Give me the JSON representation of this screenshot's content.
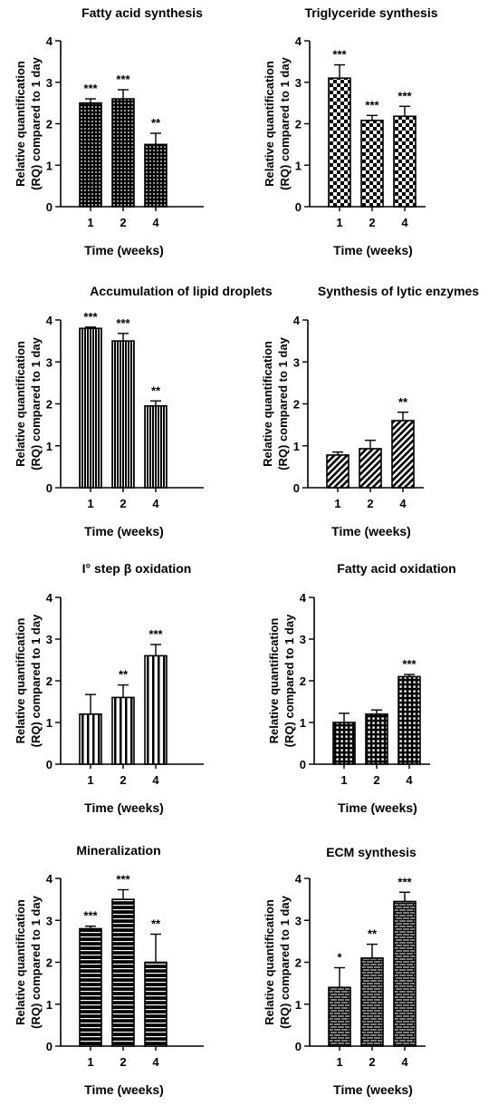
{
  "figure": {
    "panels": [
      {
        "title": "Fatty acid synthesis"
      },
      {
        "title": "Triglyceride synthesis"
      },
      {
        "title": "Accumulation of lipid droplets"
      },
      {
        "title": "Synthesis of lytic enzymes"
      },
      {
        "title": "I° step β oxidation"
      },
      {
        "title": "Fatty acid oxidation"
      },
      {
        "title": "Mineralization"
      },
      {
        "title": "ECM synthesis"
      }
    ]
  },
  "chart_data": [
    {
      "type": "bar",
      "title": "Fatty acid synthesis",
      "categories": [
        "1",
        "2",
        "4"
      ],
      "values": [
        2.5,
        2.6,
        1.5
      ],
      "error": [
        0.1,
        0.22,
        0.27
      ],
      "significance": [
        "***",
        "***",
        "**"
      ],
      "pattern": "dots",
      "xlabel": "Time (weeks)",
      "ylabel": "Relative quantification (RQ) compared to 1 day",
      "ylim": [
        0,
        4
      ],
      "yticks": [
        "0",
        "1",
        "2",
        "3",
        "4"
      ]
    },
    {
      "type": "bar",
      "title": "Triglyceride synthesis",
      "categories": [
        "1",
        "2",
        "4"
      ],
      "values": [
        3.1,
        2.08,
        2.18
      ],
      "error": [
        0.32,
        0.12,
        0.24
      ],
      "significance": [
        "***",
        "***",
        "***"
      ],
      "pattern": "checkerboard",
      "xlabel": "Time (weeks)",
      "ylabel": "Relative quantification (RQ) compared to 1 day",
      "ylim": [
        0,
        4
      ],
      "yticks": [
        "0",
        "1",
        "2",
        "3",
        "4"
      ]
    },
    {
      "type": "bar",
      "title": "Accumulation of lipid droplets",
      "categories": [
        "1",
        "2",
        "4"
      ],
      "values": [
        3.8,
        3.5,
        1.95
      ],
      "error": [
        0.03,
        0.18,
        0.12
      ],
      "significance": [
        "***",
        "***",
        "**"
      ],
      "pattern": "dense vertical stripes",
      "xlabel": "Time (weeks)",
      "ylabel": "Relative quantification (RQ) compared to 1 day",
      "ylim": [
        0,
        4
      ],
      "yticks": [
        "0",
        "1",
        "2",
        "3",
        "4"
      ]
    },
    {
      "type": "bar",
      "title": "Synthesis of lytic enzymes",
      "categories": [
        "1",
        "2",
        "4"
      ],
      "values": [
        0.78,
        0.93,
        1.6
      ],
      "error": [
        0.07,
        0.2,
        0.2
      ],
      "significance": [
        "",
        "",
        "**"
      ],
      "pattern": "diagonal stripes",
      "xlabel": "Time (weeks)",
      "ylabel": "Relative quantification (RQ) compared to 1 day",
      "ylim": [
        0,
        4
      ],
      "yticks": [
        "0",
        "1",
        "2",
        "3",
        "4"
      ]
    },
    {
      "type": "bar",
      "title": "I° step β oxidation",
      "categories": [
        "1",
        "2",
        "4"
      ],
      "values": [
        1.2,
        1.6,
        2.6
      ],
      "error": [
        0.47,
        0.3,
        0.27
      ],
      "significance": [
        "",
        "**",
        "***"
      ],
      "pattern": "vertical stripes",
      "xlabel": "Time (weeks)",
      "ylabel": "Relative quantification (RQ) compared to 1 day",
      "ylim": [
        0,
        4
      ],
      "yticks": [
        "0",
        "1",
        "2",
        "3",
        "4"
      ]
    },
    {
      "type": "bar",
      "title": "Fatty acid oxidation",
      "categories": [
        "1",
        "2",
        "4"
      ],
      "values": [
        1.0,
        1.2,
        2.1
      ],
      "error": [
        0.22,
        0.1,
        0.05
      ],
      "significance": [
        "",
        "",
        "***"
      ],
      "pattern": "grid",
      "xlabel": "Time (weeks)",
      "ylabel": "Relative quantification (RQ) compared to 1 day",
      "ylim": [
        0,
        4
      ],
      "yticks": [
        "0",
        "1",
        "2",
        "3",
        "4"
      ]
    },
    {
      "type": "bar",
      "title": "Mineralization",
      "categories": [
        "1",
        "2",
        "4"
      ],
      "values": [
        2.8,
        3.5,
        2.0
      ],
      "error": [
        0.06,
        0.23,
        0.67
      ],
      "significance": [
        "***",
        "***",
        "**"
      ],
      "pattern": "horizontal stripes",
      "xlabel": "Time (weeks)",
      "ylabel": "Relative quantification (RQ) compared to 1 day",
      "ylim": [
        0,
        4
      ],
      "yticks": [
        "0",
        "1",
        "2",
        "3",
        "4"
      ]
    },
    {
      "type": "bar",
      "title": "ECM synthesis",
      "categories": [
        "1",
        "2",
        "4"
      ],
      "values": [
        1.4,
        2.1,
        3.45
      ],
      "error": [
        0.47,
        0.33,
        0.22
      ],
      "significance": [
        "*",
        "**",
        "***"
      ],
      "pattern": "brick",
      "xlabel": "Time (weeks)",
      "ylabel": "Relative quantification (RQ) compared to 1 day",
      "ylim": [
        0,
        4
      ],
      "yticks": [
        "0",
        "1",
        "2",
        "3",
        "4"
      ]
    }
  ]
}
